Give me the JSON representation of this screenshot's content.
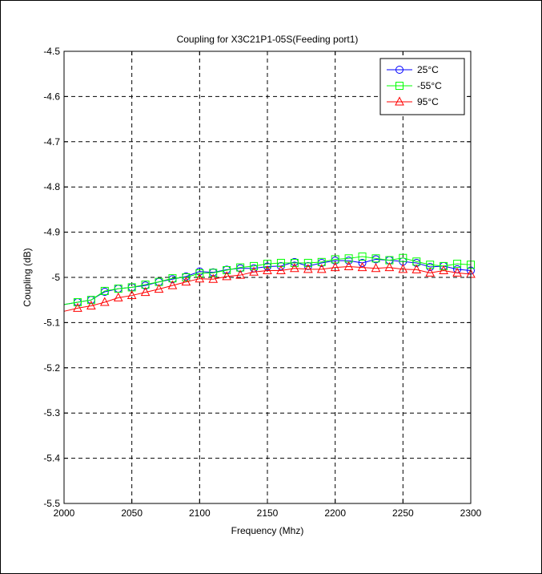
{
  "chart_data": {
    "type": "line",
    "title": "Coupling for X3C21P1-05S(Feeding port1)",
    "xlabel": "Frequency (Mhz)",
    "ylabel": "Coupling (dB)",
    "xlim": [
      2000,
      2300
    ],
    "ylim": [
      -5.5,
      -4.5
    ],
    "x_ticks": [
      2000,
      2050,
      2100,
      2150,
      2200,
      2250,
      2300
    ],
    "y_ticks": [
      -4.5,
      -4.6,
      -4.7,
      -4.8,
      -4.9,
      -5,
      -5.1,
      -5.2,
      -5.3,
      -5.4,
      -5.5
    ],
    "grid": true,
    "legend_position": "top-right",
    "x": [
      2000,
      2010,
      2020,
      2030,
      2040,
      2050,
      2060,
      2070,
      2080,
      2090,
      2100,
      2110,
      2120,
      2130,
      2140,
      2150,
      2160,
      2170,
      2180,
      2190,
      2200,
      2210,
      2220,
      2230,
      2240,
      2250,
      2260,
      2270,
      2280,
      2290,
      2300
    ],
    "series": [
      {
        "name": "25°C",
        "color": "#0000ff",
        "marker": "circle",
        "values": [
          -5.06,
          -5.055,
          -5.05,
          -5.032,
          -5.025,
          -5.022,
          -5.018,
          -5.01,
          -5.004,
          -4.998,
          -4.987,
          -4.989,
          -4.983,
          -4.98,
          -4.98,
          -4.976,
          -4.975,
          -4.966,
          -4.975,
          -4.968,
          -4.963,
          -4.963,
          -4.968,
          -4.96,
          -4.962,
          -4.965,
          -4.968,
          -4.977,
          -4.975,
          -4.982,
          -4.985
        ]
      },
      {
        "name": "-55°C",
        "color": "#00ff00",
        "marker": "square",
        "values": [
          -5.06,
          -5.055,
          -5.05,
          -5.03,
          -5.025,
          -5.022,
          -5.016,
          -5.01,
          -5.002,
          -5.0,
          -4.991,
          -4.99,
          -4.984,
          -4.978,
          -4.975,
          -4.97,
          -4.968,
          -4.968,
          -4.968,
          -4.966,
          -4.96,
          -4.958,
          -4.954,
          -4.958,
          -4.962,
          -4.957,
          -4.965,
          -4.972,
          -4.975,
          -4.97,
          -4.972
        ]
      },
      {
        "name": "95°C",
        "color": "#ff0000",
        "marker": "triangle",
        "values": [
          -5.075,
          -5.068,
          -5.063,
          -5.055,
          -5.045,
          -5.04,
          -5.033,
          -5.026,
          -5.018,
          -5.01,
          -5.003,
          -5.004,
          -4.998,
          -4.995,
          -4.988,
          -4.985,
          -4.985,
          -4.98,
          -4.982,
          -4.982,
          -4.978,
          -4.976,
          -4.978,
          -4.98,
          -4.978,
          -4.982,
          -4.983,
          -4.99,
          -4.985,
          -4.99,
          -4.993
        ]
      }
    ]
  }
}
